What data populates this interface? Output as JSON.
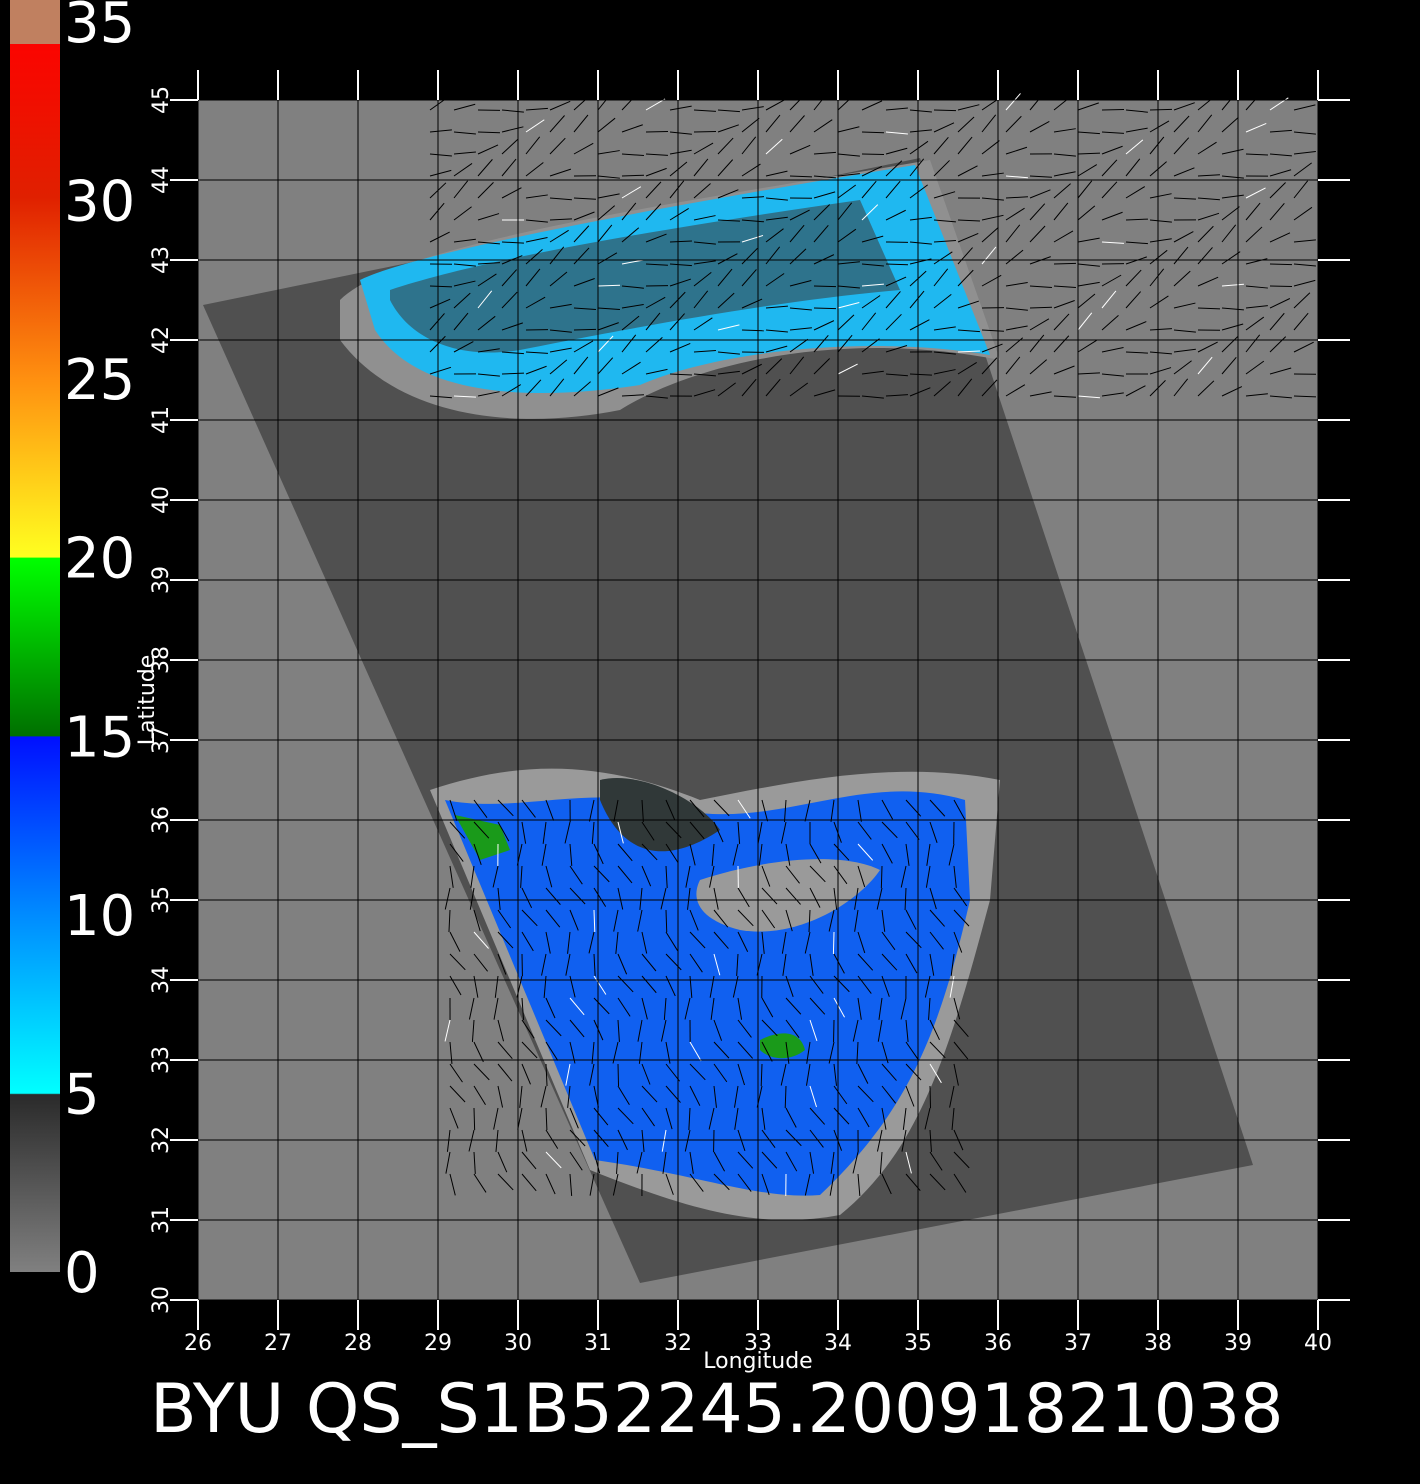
{
  "chart_data": {
    "type": "map",
    "title": "BYU QS_S1B52245.20091821038",
    "xlabel": "Longitude",
    "ylabel": "Latitude",
    "xlim": [
      26,
      40
    ],
    "ylim": [
      30,
      45
    ],
    "xticks": [
      26,
      27,
      28,
      29,
      30,
      31,
      32,
      33,
      34,
      35,
      36,
      37,
      38,
      39,
      40
    ],
    "yticks": [
      30,
      31,
      32,
      33,
      34,
      35,
      36,
      37,
      38,
      39,
      40,
      41,
      42,
      43,
      44,
      45
    ],
    "colorbar": {
      "lim": [
        0,
        35
      ],
      "ticks": [
        0,
        5,
        10,
        15,
        20,
        25,
        30,
        35
      ]
    },
    "grid": true
  }
}
